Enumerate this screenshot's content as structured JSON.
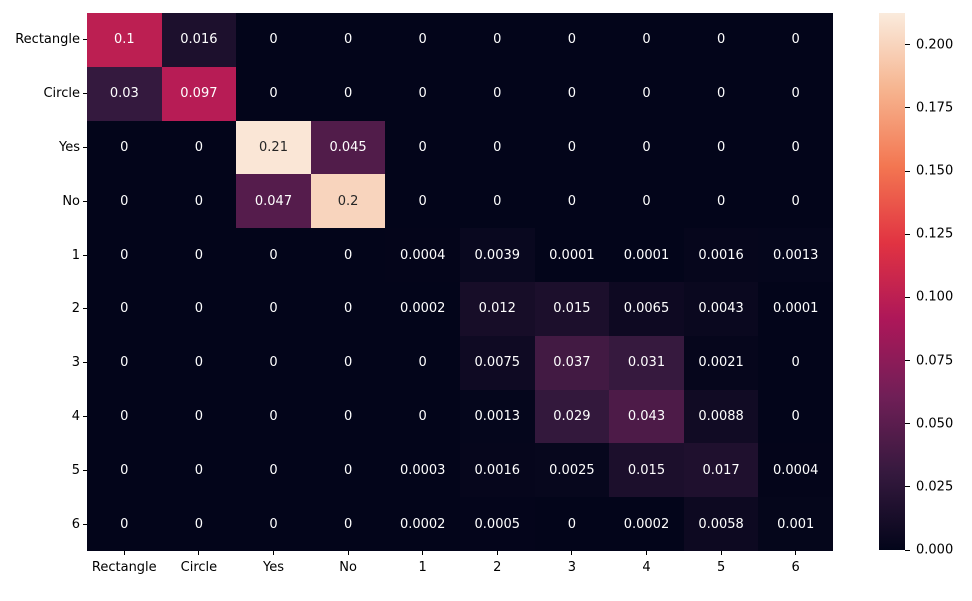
{
  "chart_data": {
    "type": "heatmap",
    "title": "",
    "xlabel": "",
    "ylabel": "",
    "row_labels": [
      "Rectangle",
      "Circle",
      "Yes",
      "No",
      "1",
      "2",
      "3",
      "4",
      "5",
      "6"
    ],
    "col_labels": [
      "Rectangle",
      "Circle",
      "Yes",
      "No",
      "1",
      "2",
      "3",
      "4",
      "5",
      "6"
    ],
    "values": [
      [
        0.1,
        0.016,
        0,
        0,
        0,
        0,
        0,
        0,
        0,
        0
      ],
      [
        0.03,
        0.097,
        0,
        0,
        0,
        0,
        0,
        0,
        0,
        0
      ],
      [
        0,
        0,
        0.21,
        0.045,
        0,
        0,
        0,
        0,
        0,
        0
      ],
      [
        0,
        0,
        0.047,
        0.2,
        0,
        0,
        0,
        0,
        0,
        0
      ],
      [
        0,
        0,
        0,
        0,
        0.0004,
        0.0039,
        0.0001,
        0.0001,
        0.0016,
        0.0013
      ],
      [
        0,
        0,
        0,
        0,
        0.0002,
        0.012,
        0.015,
        0.0065,
        0.0043,
        0.0001
      ],
      [
        0,
        0,
        0,
        0,
        0,
        0.0075,
        0.037,
        0.031,
        0.0021,
        0
      ],
      [
        0,
        0,
        0,
        0,
        0,
        0.0013,
        0.029,
        0.043,
        0.0088,
        0
      ],
      [
        0,
        0,
        0,
        0,
        0.0003,
        0.0016,
        0.0025,
        0.015,
        0.017,
        0.0004
      ],
      [
        0,
        0,
        0,
        0,
        0.0002,
        0.0005,
        0,
        0.0002,
        0.0058,
        0.001
      ]
    ],
    "cell_labels": [
      [
        "0.1",
        "0.016",
        "0",
        "0",
        "0",
        "0",
        "0",
        "0",
        "0",
        "0"
      ],
      [
        "0.03",
        "0.097",
        "0",
        "0",
        "0",
        "0",
        "0",
        "0",
        "0",
        "0"
      ],
      [
        "0",
        "0",
        "0.21",
        "0.045",
        "0",
        "0",
        "0",
        "0",
        "0",
        "0"
      ],
      [
        "0",
        "0",
        "0.047",
        "0.2",
        "0",
        "0",
        "0",
        "0",
        "0",
        "0"
      ],
      [
        "0",
        "0",
        "0",
        "0",
        "0.0004",
        "0.0039",
        "0.0001",
        "0.0001",
        "0.0016",
        "0.0013"
      ],
      [
        "0",
        "0",
        "0",
        "0",
        "0.0002",
        "0.012",
        "0.015",
        "0.0065",
        "0.0043",
        "0.0001"
      ],
      [
        "0",
        "0",
        "0",
        "0",
        "0",
        "0.0075",
        "0.037",
        "0.031",
        "0.0021",
        "0"
      ],
      [
        "0",
        "0",
        "0",
        "0",
        "0",
        "0.0013",
        "0.029",
        "0.043",
        "0.0088",
        "0"
      ],
      [
        "0",
        "0",
        "0",
        "0",
        "0.0003",
        "0.0016",
        "0.0025",
        "0.015",
        "0.017",
        "0.0004"
      ],
      [
        "0",
        "0",
        "0",
        "0",
        "0.0002",
        "0.0005",
        "0",
        "0.0002",
        "0.0058",
        "0.001"
      ]
    ],
    "vmin": 0,
    "vmax": 0.2126,
    "colormap": "rocket",
    "colormap_stops": [
      {
        "t": 0.0,
        "color": "#03051a"
      },
      {
        "t": 0.143,
        "color": "#35193e"
      },
      {
        "t": 0.286,
        "color": "#701f57"
      },
      {
        "t": 0.429,
        "color": "#ad1759"
      },
      {
        "t": 0.571,
        "color": "#e13342"
      },
      {
        "t": 0.714,
        "color": "#f37651"
      },
      {
        "t": 0.857,
        "color": "#f6b48f"
      },
      {
        "t": 1.0,
        "color": "#faebdd"
      }
    ],
    "colorbar_ticks": [
      "0.200",
      "0.175",
      "0.150",
      "0.125",
      "0.100",
      "0.075",
      "0.050",
      "0.025",
      "0.000"
    ],
    "annotation_text_colors": {
      "light": "#ffffff",
      "dark": "#262626"
    },
    "tick_label_color": "#000000",
    "background": "#ffffff",
    "legend_position": "colorbar-right",
    "grid": false
  }
}
